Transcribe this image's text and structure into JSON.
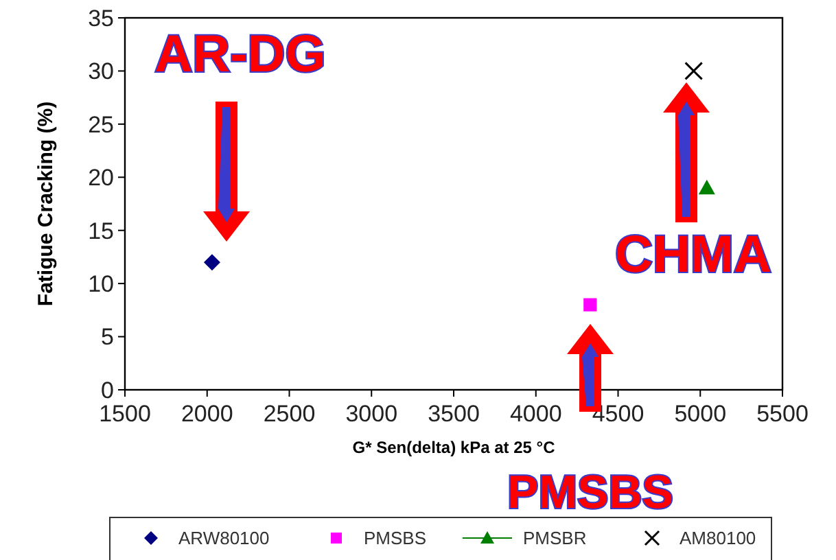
{
  "chart_data": {
    "type": "scatter",
    "xlabel": "G* Sen(delta) kPa at 25 °C",
    "ylabel": "Fatigue Cracking (%)",
    "xlim": [
      1500,
      5500
    ],
    "xticks": [
      1500,
      2000,
      2500,
      3000,
      3500,
      4000,
      4500,
      5000,
      5500
    ],
    "ylim": [
      0,
      35
    ],
    "yticks": [
      0,
      5,
      10,
      15,
      20,
      25,
      30,
      35
    ],
    "grid": false,
    "legend": "bottom",
    "series": [
      {
        "name": "ARW80100",
        "color": "#000080",
        "marker": "diamond",
        "x": [
          2030
        ],
        "values": [
          12
        ]
      },
      {
        "name": "PMSBS",
        "color": "#ff00ff",
        "marker": "square",
        "x": [
          4330
        ],
        "values": [
          8
        ]
      },
      {
        "name": "PMSBR",
        "color": "#008000",
        "marker": "triangle",
        "line_style": "solid",
        "x": [
          5040
        ],
        "values": [
          19
        ]
      },
      {
        "name": "AM80100",
        "color": "#000000",
        "marker": "cross",
        "x": [
          4960
        ],
        "values": [
          30
        ]
      }
    ],
    "annotations": [
      "AR-DG",
      "CHMA",
      "PMSBS"
    ]
  }
}
